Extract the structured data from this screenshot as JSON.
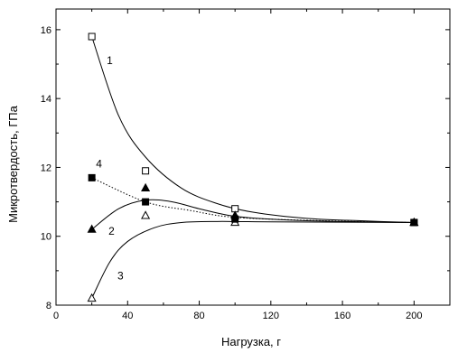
{
  "chart_data": {
    "type": "scatter",
    "xlabel": "Нагрузка, г",
    "ylabel": "Микротвердость, ГПа",
    "xlim": [
      0,
      220
    ],
    "ylim": [
      8,
      16.6
    ],
    "x_ticks": [
      0,
      40,
      80,
      120,
      160,
      200
    ],
    "y_ticks": [
      8,
      10,
      12,
      14,
      16
    ],
    "grid": false,
    "legend": "none",
    "series": [
      {
        "label": "1",
        "marker": "open-square",
        "line_style": "solid",
        "points": [
          [
            20,
            15.8
          ],
          [
            50,
            11.9
          ],
          [
            100,
            10.8
          ],
          [
            200,
            10.4
          ]
        ]
      },
      {
        "label": "2",
        "marker": "filled-triangle",
        "line_style": "solid",
        "points": [
          [
            20,
            10.2
          ],
          [
            50,
            11.4
          ],
          [
            100,
            10.6
          ],
          [
            200,
            10.4
          ]
        ]
      },
      {
        "label": "3",
        "marker": "open-triangle",
        "line_style": "solid",
        "points": [
          [
            20,
            8.2
          ],
          [
            50,
            10.6
          ],
          [
            100,
            10.4
          ],
          [
            200,
            10.4
          ]
        ]
      },
      {
        "label": "4",
        "marker": "filled-square",
        "line_style": "dotted",
        "points": [
          [
            20,
            11.7
          ],
          [
            50,
            11.0
          ],
          [
            100,
            10.5
          ],
          [
            200,
            10.4
          ]
        ]
      }
    ],
    "fit_curves": [
      {
        "series": "1",
        "style": "solid",
        "points": [
          [
            20,
            15.8
          ],
          [
            35,
            13.5
          ],
          [
            50,
            12.3
          ],
          [
            70,
            11.4
          ],
          [
            90,
            10.95
          ],
          [
            110,
            10.7
          ],
          [
            140,
            10.52
          ],
          [
            170,
            10.45
          ],
          [
            200,
            10.4
          ]
        ]
      },
      {
        "series": "2",
        "style": "solid",
        "points": [
          [
            20,
            10.2
          ],
          [
            35,
            10.8
          ],
          [
            50,
            11.05
          ],
          [
            65,
            11.0
          ],
          [
            80,
            10.8
          ],
          [
            100,
            10.58
          ],
          [
            130,
            10.47
          ],
          [
            160,
            10.43
          ],
          [
            200,
            10.4
          ]
        ]
      },
      {
        "series": "3",
        "style": "solid",
        "points": [
          [
            20,
            8.2
          ],
          [
            30,
            9.25
          ],
          [
            40,
            9.85
          ],
          [
            55,
            10.25
          ],
          [
            70,
            10.4
          ],
          [
            90,
            10.43
          ],
          [
            120,
            10.42
          ],
          [
            160,
            10.41
          ],
          [
            200,
            10.4
          ]
        ]
      },
      {
        "series": "4",
        "style": "dotted",
        "points": [
          [
            20,
            11.7
          ],
          [
            50,
            11.0
          ],
          [
            75,
            10.75
          ],
          [
            100,
            10.55
          ],
          [
            150,
            10.45
          ],
          [
            200,
            10.4
          ]
        ]
      }
    ],
    "curve_labels": [
      {
        "text": "1",
        "x": 30,
        "y": 15.0
      },
      {
        "text": "2",
        "x": 31,
        "y": 10.05
      },
      {
        "text": "3",
        "x": 36,
        "y": 8.75
      },
      {
        "text": "4",
        "x": 24,
        "y": 12.0
      }
    ]
  }
}
